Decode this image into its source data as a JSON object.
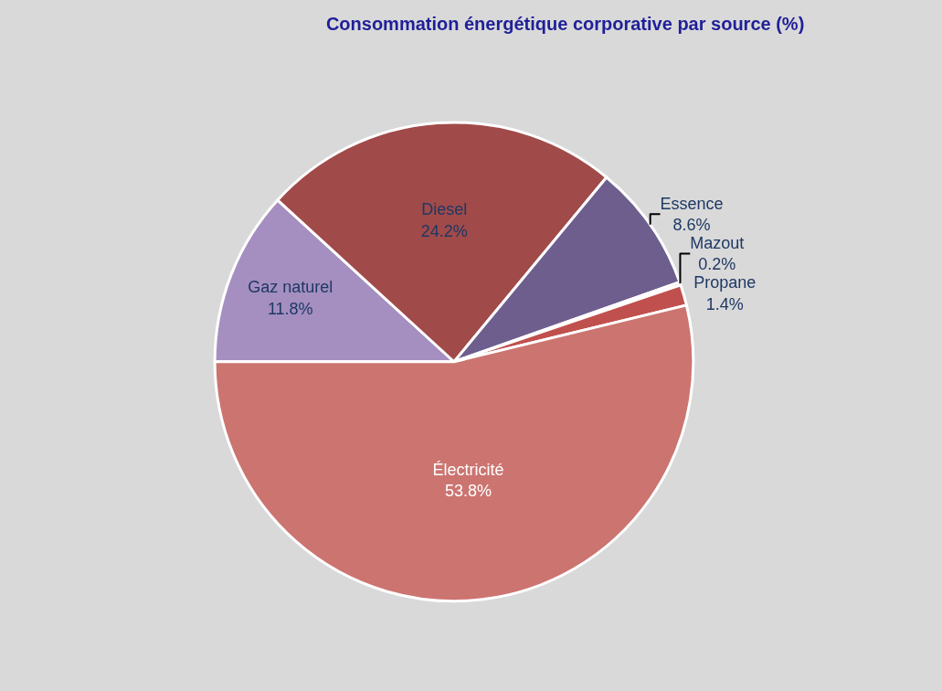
{
  "chart_data": {
    "type": "pie",
    "title": "Consommation énergétique corporative par source (%)",
    "categories": [
      "Gaz naturel",
      "Diesel",
      "Essence",
      "Mazout",
      "Propane",
      "Électricité"
    ],
    "values": [
      11.8,
      24.2,
      8.6,
      0.2,
      1.4,
      53.8
    ],
    "value_labels": [
      "11.8%",
      "24.2%",
      "8.6%",
      "0.2%",
      "1.4%",
      "53.8%"
    ],
    "colors": [
      "#a48fc0",
      "#a04a49",
      "#6e5e8e",
      "#b84a48",
      "#c0504d",
      "#cc7470"
    ],
    "legend": false
  }
}
